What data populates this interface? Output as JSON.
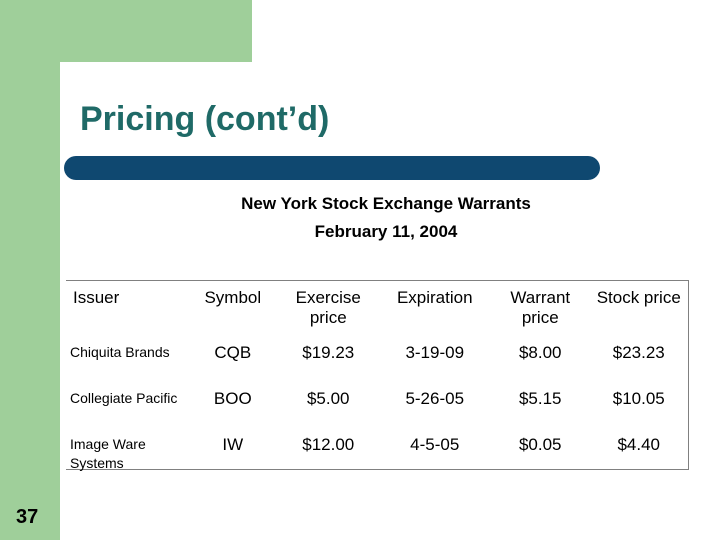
{
  "slide": {
    "title": "Pricing (cont’d)",
    "subtitle_line1": "New York Stock Exchange Warrants",
    "subtitle_line2": "February 11, 2004",
    "page_number": "37"
  },
  "table": {
    "headers": [
      "Issuer",
      "Symbol",
      "Exercise price",
      "Expiration",
      "Warrant price",
      "Stock price"
    ],
    "rows": [
      {
        "issuer": "Chiquita Brands",
        "symbol": "CQB",
        "exercise": "$19.23",
        "expiration": "3-19-09",
        "warrant": "$8.00",
        "stock": "$23.23"
      },
      {
        "issuer": "Collegiate Pacific",
        "symbol": "BOO",
        "exercise": "$5.00",
        "expiration": "5-26-05",
        "warrant": "$5.15",
        "stock": "$10.05"
      },
      {
        "issuer": "Image Ware Systems",
        "symbol": "IW",
        "exercise": "$12.00",
        "expiration": "4-5-05",
        "warrant": "$0.05",
        "stock": "$4.40"
      }
    ]
  },
  "colors": {
    "accent_green": "#9fcf9a",
    "title_teal": "#1f6a67",
    "rule_navy": "#0f4870"
  }
}
